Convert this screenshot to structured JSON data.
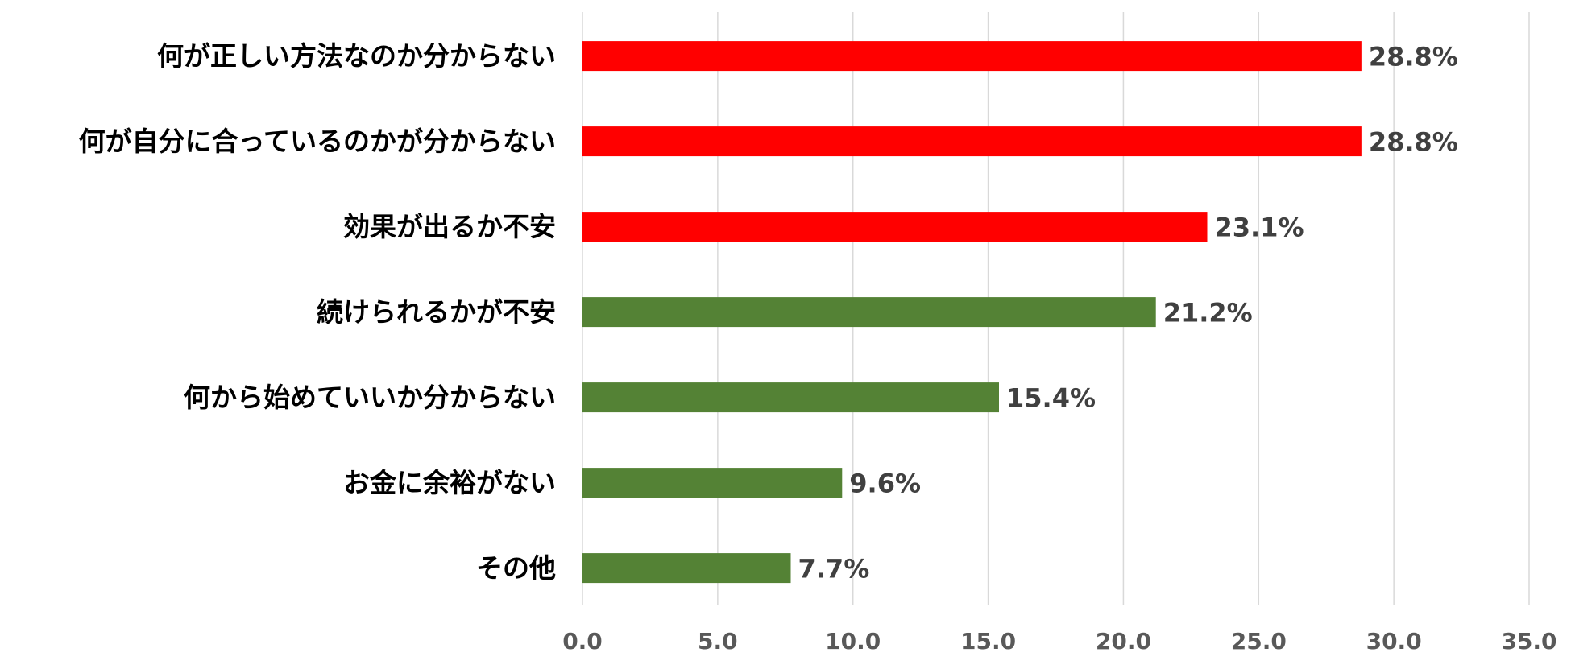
{
  "chart_data": {
    "type": "barh",
    "categories": [
      "何が正しい方法なのか分からない",
      "何が自分に合っているのかが分からない",
      "効果が出るか不安",
      "続けられるかが不安",
      "何から始めていいか分からない",
      "お金に余裕がない",
      "その他"
    ],
    "values": [
      28.8,
      28.8,
      23.1,
      21.2,
      15.4,
      9.6,
      7.7
    ],
    "value_labels": [
      "28.8%",
      "28.8%",
      "23.1%",
      "21.2%",
      "15.4%",
      "9.6%",
      "7.7%"
    ],
    "colors": [
      "#ff0000",
      "#ff0000",
      "#ff0000",
      "#548235",
      "#548235",
      "#548235",
      "#548235"
    ],
    "xlim": [
      0,
      35
    ],
    "xticks": [
      {
        "value": 0,
        "label": "0.0"
      },
      {
        "value": 5,
        "label": "5.0"
      },
      {
        "value": 10,
        "label": "10.0"
      },
      {
        "value": 15,
        "label": "15.0"
      },
      {
        "value": 20,
        "label": "20.0"
      },
      {
        "value": 25,
        "label": "25.0"
      },
      {
        "value": 30,
        "label": "30.0"
      },
      {
        "value": 35,
        "label": "35.0"
      }
    ],
    "grid": true
  }
}
